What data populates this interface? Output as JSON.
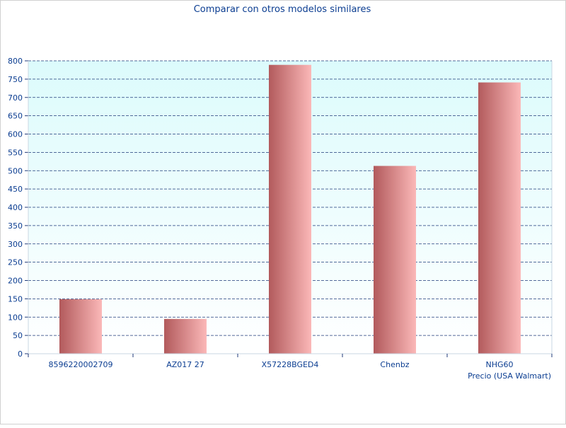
{
  "chart_data": {
    "type": "bar",
    "title": "Comparar con otros modelos similares",
    "xlabel": "Precio (USA Walmart)",
    "ylabel": "",
    "categories": [
      "8596220002709",
      "AZ017 27",
      "X57228BGED4",
      "Chenbz",
      "NHG60"
    ],
    "values": [
      149,
      95,
      789,
      513,
      741
    ],
    "ylim": [
      0,
      800
    ],
    "yticks": [
      0,
      50,
      100,
      150,
      200,
      250,
      300,
      350,
      400,
      450,
      500,
      550,
      600,
      650,
      700,
      750,
      800
    ],
    "grid": true,
    "legend": "none"
  },
  "colors": {
    "text": "#0b3d91",
    "grid": "#1f3a7a",
    "plot_bg_top": "#dcfbfc",
    "plot_bg_bottom": "#ffffff",
    "bar_dark": "#b25a5c",
    "bar_light": "#fbb8b8",
    "axis": "#c9d7e3"
  }
}
